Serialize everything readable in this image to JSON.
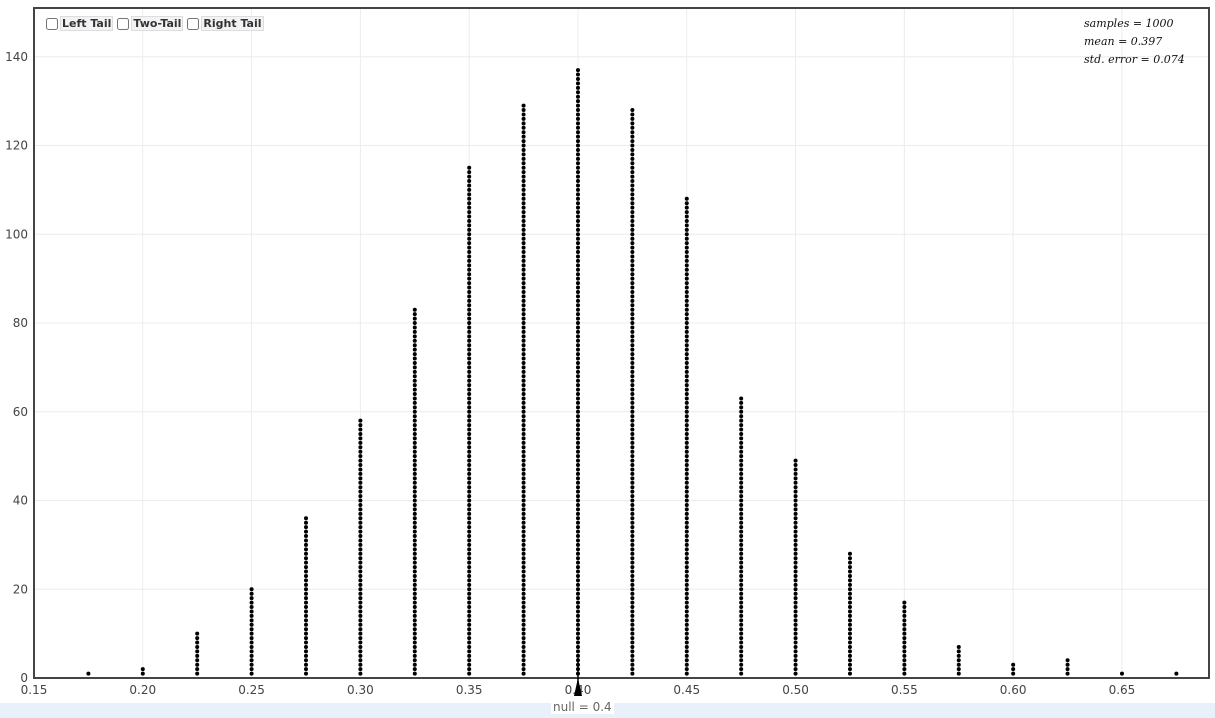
{
  "controls": {
    "left_tail": "Left Tail",
    "two_tail": "Two-Tail",
    "right_tail": "Right Tail"
  },
  "stats": {
    "samples": "samples = 1000",
    "mean": "mean = 0.397",
    "std_error": "std. error = 0.074"
  },
  "null_label": "null = 0.4",
  "chart_data": {
    "type": "scatter",
    "subtype": "dotplot",
    "title": "",
    "xlabel": "",
    "ylabel": "",
    "xlim": [
      0.15,
      0.69
    ],
    "ylim": [
      0,
      151
    ],
    "grid": true,
    "x_ticks": [
      "0.15",
      "0.20",
      "0.25",
      "0.30",
      "0.35",
      "0.40",
      "0.45",
      "0.50",
      "0.55",
      "0.60",
      "0.65"
    ],
    "y_ticks": [
      "0",
      "20",
      "40",
      "60",
      "80",
      "100",
      "120",
      "140"
    ],
    "x": [
      0.175,
      0.2,
      0.225,
      0.25,
      0.275,
      0.3,
      0.325,
      0.35,
      0.375,
      0.4,
      0.425,
      0.45,
      0.475,
      0.5,
      0.525,
      0.55,
      0.575,
      0.6,
      0.625,
      0.65,
      0.675
    ],
    "counts": [
      1,
      2,
      10,
      20,
      36,
      58,
      83,
      115,
      129,
      137,
      128,
      108,
      63,
      49,
      28,
      17,
      7,
      3,
      4,
      1,
      1
    ],
    "null_value": 0.4,
    "dot_color": "#000000"
  }
}
